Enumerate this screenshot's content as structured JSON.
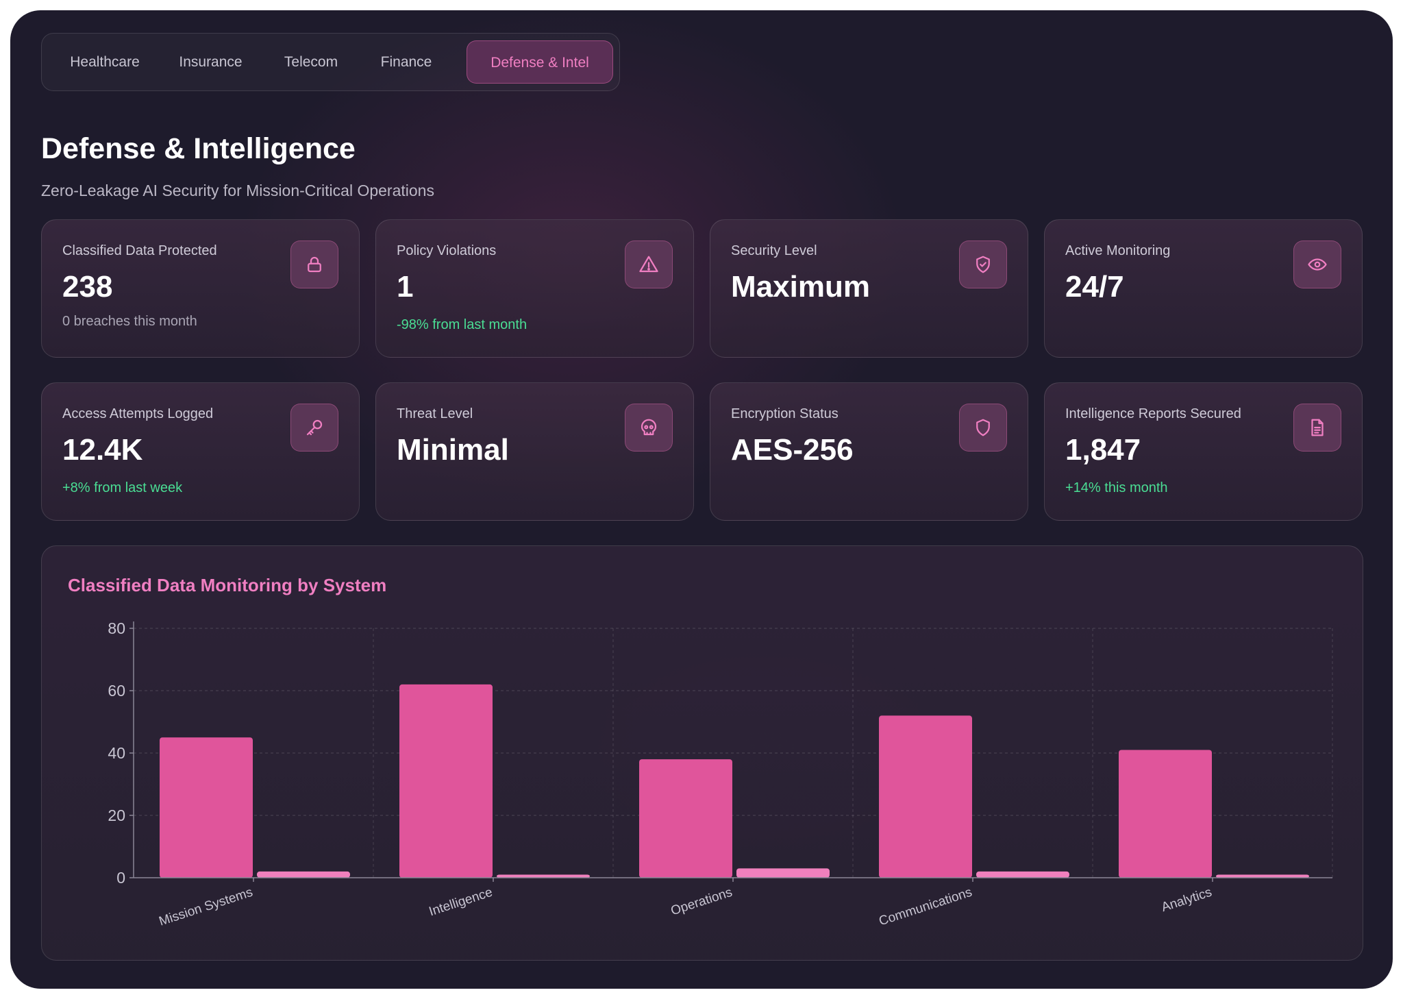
{
  "tabs": [
    {
      "label": "Healthcare",
      "active": false
    },
    {
      "label": "Insurance",
      "active": false
    },
    {
      "label": "Telecom",
      "active": false
    },
    {
      "label": "Finance",
      "active": false
    },
    {
      "label": "Defense & Intel",
      "active": true
    }
  ],
  "header": {
    "title": "Defense & Intelligence",
    "subtitle": "Zero-Leakage AI Security for Mission-Critical Operations"
  },
  "cards": [
    {
      "label": "Classified Data Protected",
      "value": "238",
      "sub": "0 breaches this month",
      "sub_type": "neutral",
      "icon": "lock-icon"
    },
    {
      "label": "Policy Violations",
      "value": "1",
      "sub": "-98% from last month",
      "sub_type": "positive",
      "icon": "warning-triangle-icon"
    },
    {
      "label": "Security Level",
      "value": "Maximum",
      "sub": "",
      "sub_type": "none",
      "icon": "shield-check-icon"
    },
    {
      "label": "Active Monitoring",
      "value": "24/7",
      "sub": "",
      "sub_type": "none",
      "icon": "eye-icon"
    },
    {
      "label": "Access Attempts Logged",
      "value": "12.4K",
      "sub": "+8% from last week",
      "sub_type": "positive",
      "icon": "key-icon"
    },
    {
      "label": "Threat Level",
      "value": "Minimal",
      "sub": "",
      "sub_type": "none",
      "icon": "skull-icon"
    },
    {
      "label": "Encryption Status",
      "value": "AES-256",
      "sub": "",
      "sub_type": "none",
      "icon": "shield-icon"
    },
    {
      "label": "Intelligence Reports Secured",
      "value": "1,847",
      "sub": "+14% this month",
      "sub_type": "positive",
      "icon": "document-icon"
    }
  ],
  "colors": {
    "accent": "#f07fc2",
    "positive": "#4ade94",
    "bar_primary": "#e0559b",
    "bar_secondary": "#f080bd"
  },
  "chart_data": {
    "type": "bar",
    "title": "Classified Data Monitoring by System",
    "categories": [
      "Mission Systems",
      "Intelligence",
      "Operations",
      "Communications",
      "Analytics"
    ],
    "series": [
      {
        "values": [
          45,
          62,
          38,
          52,
          41
        ]
      },
      {
        "values": [
          2,
          1,
          3,
          2,
          1
        ]
      }
    ],
    "ylim": [
      0,
      80
    ],
    "yticks": [
      0,
      20,
      40,
      60,
      80
    ],
    "grid": true,
    "legend": "none"
  }
}
